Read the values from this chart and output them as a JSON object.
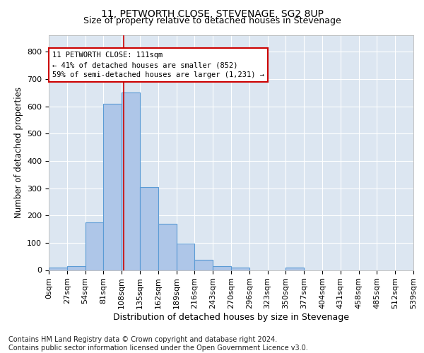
{
  "title": "11, PETWORTH CLOSE, STEVENAGE, SG2 8UP",
  "subtitle": "Size of property relative to detached houses in Stevenage",
  "xlabel": "Distribution of detached houses by size in Stevenage",
  "ylabel": "Number of detached properties",
  "bin_edges": [
    0,
    27,
    54,
    81,
    108,
    135,
    162,
    189,
    216,
    243,
    270,
    297,
    324,
    351,
    378,
    405,
    432,
    459,
    486,
    513,
    540
  ],
  "bin_labels": [
    "0sqm",
    "27sqm",
    "54sqm",
    "81sqm",
    "108sqm",
    "135sqm",
    "162sqm",
    "189sqm",
    "216sqm",
    "243sqm",
    "270sqm",
    "296sqm",
    "323sqm",
    "350sqm",
    "377sqm",
    "404sqm",
    "431sqm",
    "458sqm",
    "485sqm",
    "512sqm",
    "539sqm"
  ],
  "bar_heights": [
    8,
    13,
    175,
    610,
    650,
    305,
    170,
    97,
    38,
    14,
    8,
    0,
    0,
    8,
    0,
    0,
    0,
    0,
    0,
    0
  ],
  "bar_color": "#aec6e8",
  "bar_edge_color": "#5b9bd5",
  "property_size": 111,
  "property_line_color": "#cc0000",
  "annotation_line1": "11 PETWORTH CLOSE: 111sqm",
  "annotation_line2": "← 41% of detached houses are smaller (852)",
  "annotation_line3": "59% of semi-detached houses are larger (1,231) →",
  "annotation_box_color": "#ffffff",
  "annotation_box_edge": "#cc0000",
  "ylim": [
    0,
    860
  ],
  "yticks": [
    0,
    100,
    200,
    300,
    400,
    500,
    600,
    700,
    800
  ],
  "xlim": [
    0,
    540
  ],
  "background_color": "#dce6f1",
  "footer_text": "Contains HM Land Registry data © Crown copyright and database right 2024.\nContains public sector information licensed under the Open Government Licence v3.0.",
  "title_fontsize": 10,
  "subtitle_fontsize": 9,
  "xlabel_fontsize": 9,
  "ylabel_fontsize": 8.5,
  "tick_fontsize": 8,
  "annotation_fontsize": 7.5,
  "footer_fontsize": 7
}
